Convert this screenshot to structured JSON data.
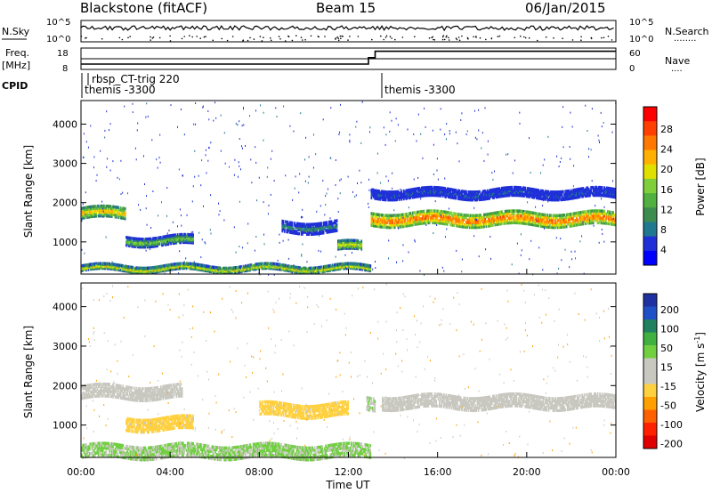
{
  "header": {
    "station": "Blackstone (fitACF)",
    "beam": "Beam 15",
    "date": "06/Jan/2015"
  },
  "panels": {
    "nsky": {
      "label": "N.Sky",
      "right_label": "N.Search",
      "right_dots": "........",
      "ticks": [
        "10^5",
        "10^0"
      ],
      "right_ticks": [
        "10^5",
        "10^0"
      ]
    },
    "freq": {
      "label_line1": "Freq.",
      "label_line2": "[MHz]",
      "ticks": [
        "18",
        "8"
      ],
      "right_label": "Nave",
      "right_dots": "....",
      "right_ticks": [
        "60",
        "0"
      ]
    },
    "cpid": {
      "label": "CPID",
      "entries": [
        {
          "text": "rbsp_CT-trig 220",
          "hour": 1.0
        },
        {
          "text": "themis -3300",
          "hour": 0.1
        },
        {
          "text": "themis -3300",
          "hour": 13.4
        }
      ]
    }
  },
  "colorbars": {
    "power": {
      "label": "Power [dB]",
      "ticks": [
        "28",
        "24",
        "20",
        "16",
        "12",
        "8",
        "4"
      ],
      "colors": [
        "#0000ff",
        "#2030d8",
        "#207890",
        "#3c8c50",
        "#50b040",
        "#7fcf3a",
        "#e0e000",
        "#ffb000",
        "#ff7800",
        "#ff4000",
        "#ff0000"
      ]
    },
    "velocity": {
      "label": "Velocity [m s",
      "label_sup": "-1",
      "label_end": "]",
      "ticks": [
        "200",
        "100",
        "50",
        "15",
        "-15",
        "-50",
        "-100",
        "-200"
      ],
      "colors": [
        "#2030a0",
        "#2050c8",
        "#208060",
        "#40b040",
        "#70d040",
        "#c8c8c0",
        "#c8c8c0",
        "#ffd040",
        "#ffa000",
        "#ff6000",
        "#ff2000",
        "#e00000"
      ]
    }
  },
  "axes": {
    "ylabel": "Slant Range [km]",
    "yticks": [
      1000,
      2000,
      3000,
      4000
    ],
    "xlabel": "Time UT",
    "xticks": [
      "00:00",
      "04:00",
      "08:00",
      "12:00",
      "16:00",
      "20:00",
      "00:00"
    ]
  },
  "chart_data": {
    "type": "heatmap",
    "title": "Blackstone (fitACF)  Beam 15  06/Jan/2015",
    "xlabel": "Time UT",
    "ylabel": "Slant Range [km]",
    "xlim": [
      0,
      24
    ],
    "ylim": [
      180,
      4600
    ],
    "frequency_steps": [
      {
        "hour_start": 0.0,
        "hour_end": 12.9,
        "freq_mhz": 10.5
      },
      {
        "hour_start": 12.9,
        "hour_end": 13.2,
        "freq_mhz": 13.5
      },
      {
        "hour_start": 13.2,
        "hour_end": 24.0,
        "freq_mhz": 16.5
      }
    ],
    "power_bands": [
      {
        "hour_start": 0.0,
        "hour_end": 2.0,
        "range_center_km": 1700,
        "thickness_km": 250,
        "power_db": 22
      },
      {
        "hour_start": 2.0,
        "hour_end": 5.0,
        "range_center_km": 1000,
        "thickness_km": 200,
        "power_db": 16
      },
      {
        "hour_start": 9.0,
        "hour_end": 11.5,
        "range_center_km": 1350,
        "thickness_km": 250,
        "power_db": 10
      },
      {
        "hour_start": 11.5,
        "hour_end": 12.6,
        "range_center_km": 850,
        "thickness_km": 200,
        "power_db": 20
      },
      {
        "hour_start": 13.0,
        "hour_end": 24.0,
        "range_center_km": 1550,
        "thickness_km": 300,
        "power_db": 26
      },
      {
        "hour_start": 13.0,
        "hour_end": 24.0,
        "range_center_km": 2200,
        "thickness_km": 200,
        "power_db": 6
      },
      {
        "hour_start": 0.0,
        "hour_end": 13.0,
        "range_center_km": 300,
        "thickness_km": 120,
        "power_db": 20
      }
    ],
    "velocity_regions": [
      {
        "hour_start": 0.0,
        "hour_end": 4.5,
        "range_center_km": 1800,
        "velocity_ms": 0
      },
      {
        "hour_start": 2.0,
        "hour_end": 5.0,
        "range_center_km": 1000,
        "velocity_ms": -50
      },
      {
        "hour_start": 8.0,
        "hour_end": 12.0,
        "range_center_km": 1350,
        "velocity_ms": -50
      },
      {
        "hour_start": 12.8,
        "hour_end": 13.2,
        "range_center_km": 1500,
        "velocity_ms": 30
      },
      {
        "hour_start": 13.5,
        "hour_end": 24.0,
        "range_center_km": 1550,
        "velocity_ms": 0
      },
      {
        "hour_start": 0.0,
        "hour_end": 13.0,
        "range_center_km": 300,
        "velocity_ms": 40
      }
    ]
  }
}
